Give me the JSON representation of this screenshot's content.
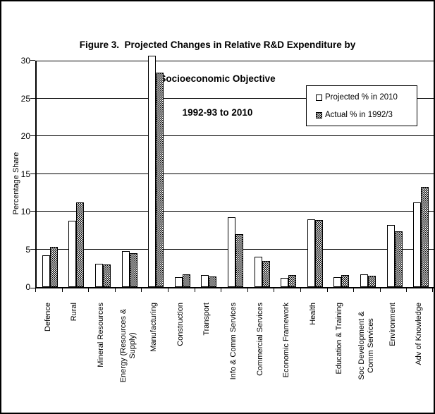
{
  "figure": {
    "title_lines": [
      "Figure 3.  Projected Changes in Relative R&D Expenditure by",
      "Socioeconomic Objective",
      "1992-93 to 2010"
    ]
  },
  "chart_data": {
    "type": "bar",
    "title": "Figure 3. Projected Changes in Relative R&D Expenditure by Socioeconomic Objective 1992-93 to 2010",
    "ylabel": "Percentage Share",
    "ylim": [
      0,
      30
    ],
    "yticks": [
      0,
      5,
      10,
      15,
      20,
      25,
      30
    ],
    "grid": "horizontal",
    "legend_position": "upper-right-inside",
    "categories": [
      "Defence",
      "Rural",
      "Mineral Resources",
      "Energy (Resources &\nSupply)",
      "Manufacturing",
      "Construction",
      "Transport",
      "Info & Comm Services",
      "Commercial Services",
      "Economic Framework",
      "Health",
      "Education & Training",
      "Soc Development &\nComm Services",
      "Environment",
      "Adv of Knowledge"
    ],
    "series": [
      {
        "name": "Projected % in 2010",
        "style": "white",
        "values": [
          4.2,
          8.8,
          3.1,
          4.8,
          30.7,
          1.3,
          1.6,
          9.3,
          4.0,
          1.2,
          9.0,
          1.3,
          1.7,
          8.2,
          11.2
        ]
      },
      {
        "name": "Actual % in 1992/3",
        "style": "hatched",
        "values": [
          5.3,
          11.2,
          3.0,
          4.5,
          28.4,
          1.7,
          1.4,
          7.0,
          3.5,
          1.6,
          8.9,
          1.6,
          1.5,
          7.4,
          13.3
        ]
      }
    ]
  }
}
